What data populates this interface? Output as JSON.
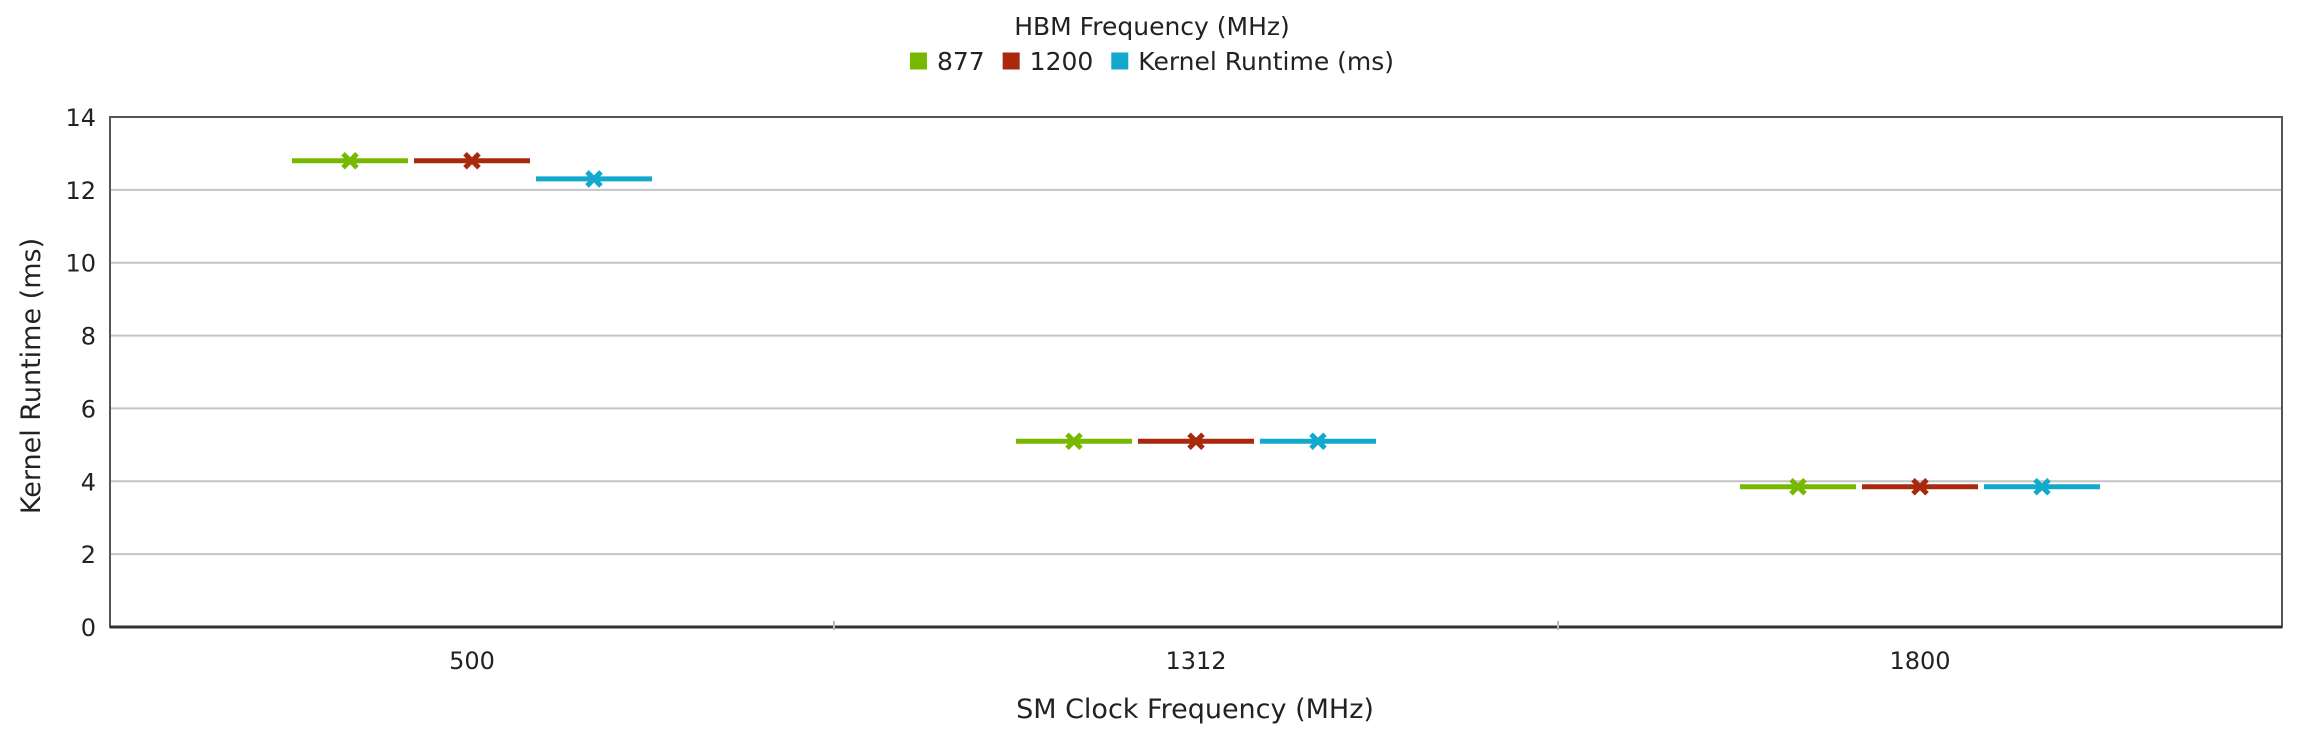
{
  "chart_data": {
    "type": "scatter",
    "title": "",
    "legend": {
      "title": "HBM Frequency (MHz)",
      "placement": "top-center",
      "entries": [
        {
          "label": "877",
          "color": "#76b900"
        },
        {
          "label": "1200",
          "color": "#a8290e"
        },
        {
          "label": "Kernel Runtime (ms)",
          "color": "#12a9cc"
        }
      ]
    },
    "xlabel": "SM Clock Frequency (MHz)",
    "ylabel": "Kernel Runtime (ms)",
    "categories": [
      "500",
      "1312",
      "1800"
    ],
    "ylim": [
      0,
      14
    ],
    "yticks": [
      0,
      2,
      4,
      6,
      8,
      10,
      12,
      14
    ],
    "grid": true,
    "marker": "x-with-horizontal-bar",
    "series": [
      {
        "name": "877",
        "color": "#76b900",
        "values": [
          12.8,
          5.1,
          3.85
        ]
      },
      {
        "name": "1200",
        "color": "#a8290e",
        "values": [
          12.8,
          5.1,
          3.85
        ]
      },
      {
        "name": "Kernel Runtime (ms)",
        "color": "#12a9cc",
        "values": [
          12.3,
          5.1,
          3.85
        ]
      }
    ]
  }
}
